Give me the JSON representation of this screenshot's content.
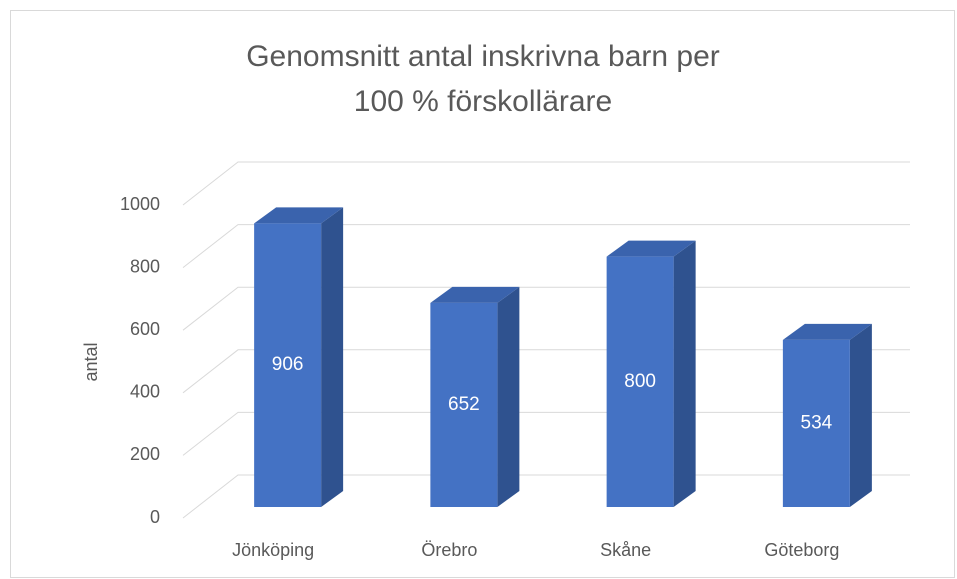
{
  "chart_data": {
    "type": "bar3d",
    "title": [
      "Genomsnitt antal inskrivna barn per",
      "100 % förskollärare"
    ],
    "y_label": "antal",
    "categories": [
      "Jönköping",
      "Örebro",
      "Skåne",
      "Göteborg"
    ],
    "values": [
      906,
      652,
      800,
      534
    ],
    "color": "#4472c4",
    "ylim": [
      0,
      1000
    ],
    "yticks": [
      0,
      200,
      400,
      600,
      800,
      1000
    ],
    "grid": true
  }
}
